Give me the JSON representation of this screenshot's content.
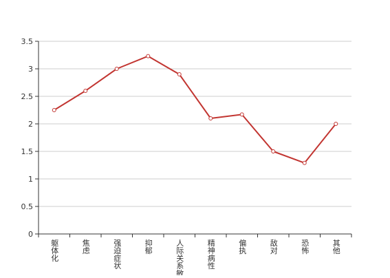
{
  "chart_data": {
    "type": "line",
    "categories": [
      "躯体化",
      "焦虑",
      "强迫症状",
      "抑郁",
      "人际关系敏感",
      "精神病性",
      "偏执",
      "敌对",
      "恐怖",
      "其他"
    ],
    "series": [
      {
        "values": [
          2.25,
          2.6,
          3.0,
          3.23,
          2.9,
          2.1,
          2.17,
          1.5,
          1.29,
          2.0
        ],
        "color": "#c23531"
      }
    ],
    "ylim": [
      0,
      3.5
    ],
    "yticks": [
      0,
      0.5,
      1,
      1.5,
      2,
      2.5,
      3,
      3.5
    ],
    "grid": true,
    "legend": "none",
    "colors": {
      "line": "#c23531",
      "grid": "#cccccc",
      "axis": "#333333"
    }
  }
}
